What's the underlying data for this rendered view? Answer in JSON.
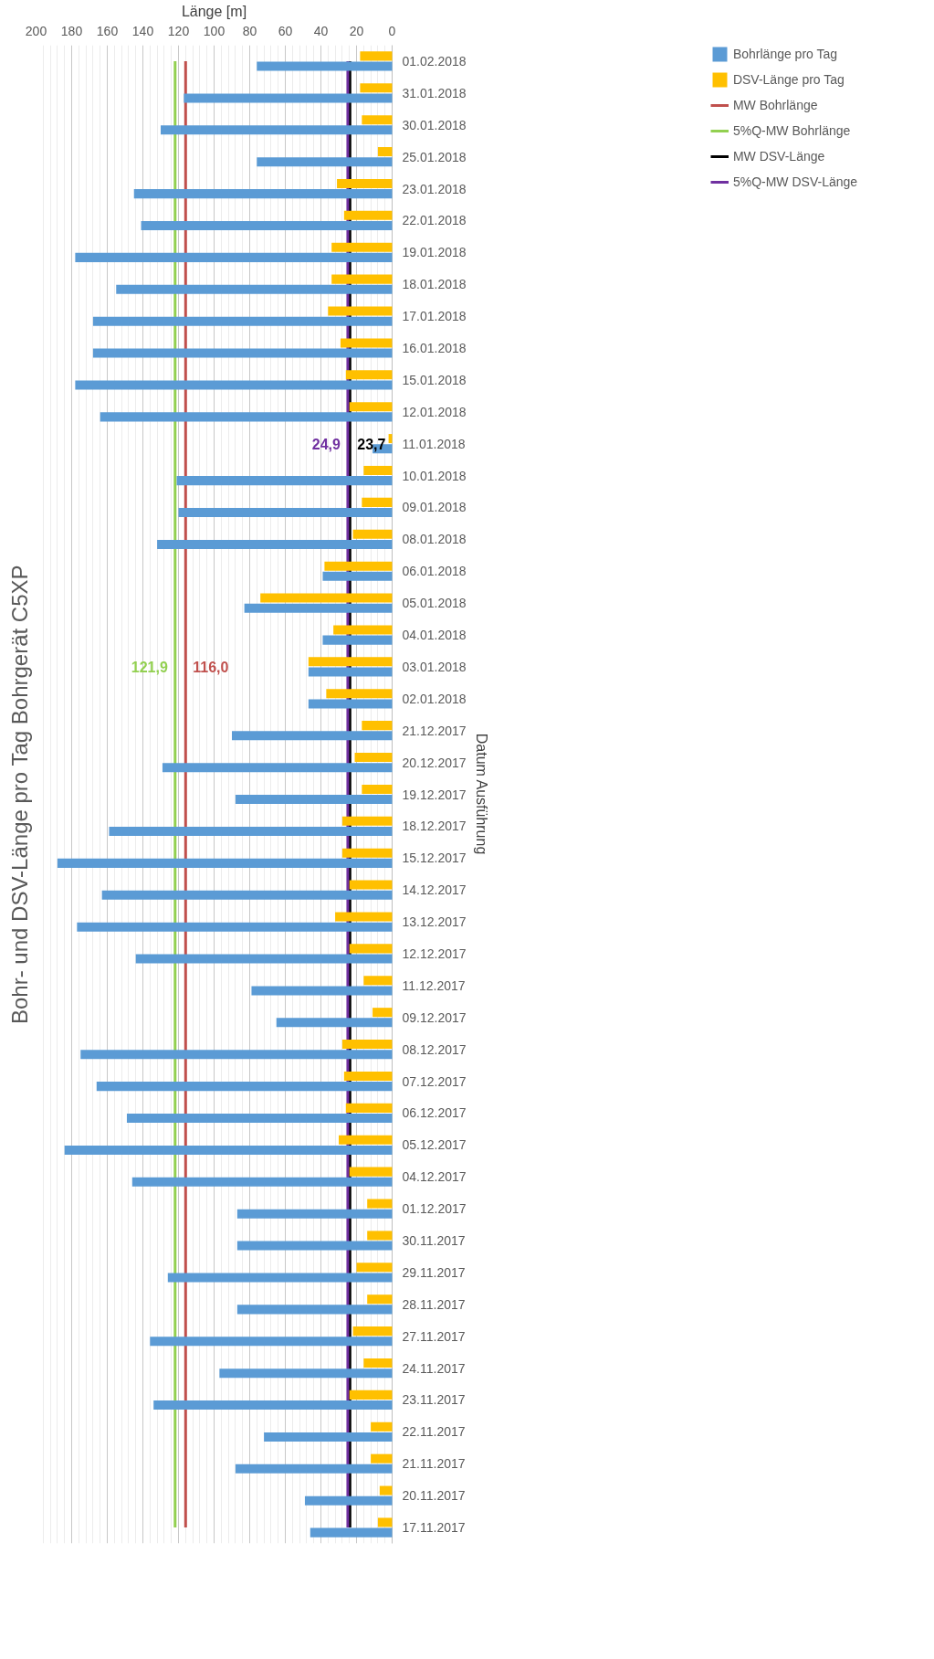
{
  "chart_data": {
    "type": "bar",
    "orientation": "horizontal",
    "title": "Bohr- und DSV-Länge pro Tag Bohrgerät C5XP",
    "xlabel": "Länge [m]",
    "ylabel": "Datum Ausführung",
    "categories": [
      "01.02.2018",
      "31.01.2018",
      "30.01.2018",
      "25.01.2018",
      "23.01.2018",
      "22.01.2018",
      "19.01.2018",
      "18.01.2018",
      "17.01.2018",
      "16.01.2018",
      "15.01.2018",
      "12.01.2018",
      "11.01.2018",
      "10.01.2018",
      "09.01.2018",
      "08.01.2018",
      "06.01.2018",
      "05.01.2018",
      "04.01.2018",
      "03.01.2018",
      "02.01.2018",
      "21.12.2017",
      "20.12.2017",
      "19.12.2017",
      "18.12.2017",
      "15.12.2017",
      "14.12.2017",
      "13.12.2017",
      "12.12.2017",
      "11.12.2017",
      "09.12.2017",
      "08.12.2017",
      "07.12.2017",
      "06.12.2017",
      "05.12.2017",
      "04.12.2017",
      "01.12.2017",
      "30.11.2017",
      "29.11.2017",
      "28.11.2017",
      "27.11.2017",
      "24.11.2017",
      "23.11.2017",
      "22.11.2017",
      "21.11.2017",
      "20.11.2017",
      "17.11.2017"
    ],
    "series": [
      {
        "name": "Bohrlänge pro Tag",
        "color": "#5b9bd5",
        "values": [
          76,
          117,
          130,
          76,
          145,
          141,
          178,
          155,
          168,
          168,
          178,
          164,
          11,
          121,
          120,
          132,
          39,
          83,
          39,
          47,
          47,
          90,
          129,
          88,
          159,
          188,
          163,
          177,
          144,
          79,
          65,
          175,
          166,
          149,
          184,
          146,
          87,
          87,
          126,
          87,
          136,
          97,
          134,
          72,
          88,
          49,
          46
        ]
      },
      {
        "name": "DSV-Länge pro Tag",
        "color": "#ffc000",
        "values": [
          18,
          18,
          17,
          8,
          31,
          27,
          34,
          34,
          36,
          29,
          26,
          24,
          2,
          16,
          17,
          22,
          38,
          74,
          33,
          47,
          37,
          17,
          21,
          17,
          28,
          28,
          24,
          32,
          24,
          16,
          11,
          28,
          27,
          26,
          30,
          24,
          14,
          14,
          20,
          14,
          22,
          16,
          24,
          12,
          12,
          7,
          8
        ]
      },
      {
        "name": "MW Bohrlänge",
        "type": "line",
        "color": "#c0504d",
        "values": [
          116.0,
          116.0,
          116.0,
          116.0,
          116.0,
          116.0,
          116.0,
          116.0,
          116.0,
          116.0,
          116.0,
          116.0,
          116.0,
          116.0,
          116.0,
          116.0,
          116.0,
          116.0,
          116.0,
          116.0,
          116.0,
          116.0,
          116.0,
          116.0,
          116.0,
          116.0,
          116.0,
          116.0,
          116.0,
          116.0,
          116.0,
          116.0,
          116.0,
          116.0,
          116.0,
          116.0,
          116.0,
          116.0,
          116.0,
          116.0,
          116.0,
          116.0,
          116.0,
          116.0,
          116.0,
          116.0,
          116.0
        ],
        "value_labels": [
          null,
          null,
          null,
          null,
          null,
          null,
          null,
          null,
          null,
          null,
          null,
          null,
          null,
          null,
          null,
          null,
          null,
          null,
          null,
          "116,0",
          null,
          null,
          null,
          null,
          null,
          null,
          null,
          null,
          null,
          null,
          null,
          null,
          null,
          null,
          null,
          null,
          null,
          null,
          null,
          null,
          null,
          null,
          null,
          null,
          null,
          null,
          null
        ]
      },
      {
        "name": "5%Q-MW Bohrlänge",
        "type": "line",
        "color": "#92d050",
        "values": [
          121.9,
          121.9,
          121.9,
          121.9,
          121.9,
          121.9,
          121.9,
          121.9,
          121.9,
          121.9,
          121.9,
          121.9,
          121.9,
          121.9,
          121.9,
          121.9,
          121.9,
          121.9,
          121.9,
          121.9,
          121.9,
          121.9,
          121.9,
          121.9,
          121.9,
          121.9,
          121.9,
          121.9,
          121.9,
          121.9,
          121.9,
          121.9,
          121.9,
          121.9,
          121.9,
          121.9,
          121.9,
          121.9,
          121.9,
          121.9,
          121.9,
          121.9,
          121.9,
          121.9,
          121.9,
          121.9,
          121.9
        ],
        "value_labels": [
          null,
          null,
          null,
          null,
          null,
          null,
          null,
          null,
          null,
          null,
          null,
          null,
          null,
          null,
          null,
          null,
          null,
          null,
          null,
          "121,9",
          null,
          null,
          null,
          null,
          null,
          null,
          null,
          null,
          null,
          null,
          null,
          null,
          null,
          null,
          null,
          null,
          null,
          null,
          null,
          null,
          null,
          null,
          null,
          null,
          null,
          null,
          null
        ]
      },
      {
        "name": "MW DSV-Länge",
        "type": "line",
        "color": "#000000",
        "values": [
          23.7,
          23.7,
          23.7,
          23.7,
          23.7,
          23.7,
          23.7,
          23.7,
          23.7,
          23.7,
          23.7,
          23.7,
          23.7,
          23.7,
          23.7,
          23.7,
          23.7,
          23.7,
          23.7,
          23.7,
          23.7,
          23.7,
          23.7,
          23.7,
          23.7,
          23.7,
          23.7,
          23.7,
          23.7,
          23.7,
          23.7,
          23.7,
          23.7,
          23.7,
          23.7,
          23.7,
          23.7,
          23.7,
          23.7,
          23.7,
          23.7,
          23.7,
          23.7,
          23.7,
          23.7,
          23.7,
          23.7
        ],
        "value_labels": [
          null,
          null,
          null,
          null,
          null,
          null,
          null,
          null,
          null,
          null,
          null,
          null,
          "23,7",
          null,
          null,
          null,
          null,
          null,
          null,
          null,
          null,
          null,
          null,
          null,
          null,
          null,
          null,
          null,
          null,
          null,
          null,
          null,
          null,
          null,
          null,
          null,
          null,
          null,
          null,
          null,
          null,
          null,
          null,
          null,
          null,
          null,
          null
        ]
      },
      {
        "name": "5%Q-MW DSV-Länge",
        "type": "line",
        "color": "#7030a0",
        "values": [
          24.9,
          24.9,
          24.9,
          24.9,
          24.9,
          24.9,
          24.9,
          24.9,
          24.9,
          24.9,
          24.9,
          24.9,
          24.9,
          24.9,
          24.9,
          24.9,
          24.9,
          24.9,
          24.9,
          24.9,
          24.9,
          24.9,
          24.9,
          24.9,
          24.9,
          24.9,
          24.9,
          24.9,
          24.9,
          24.9,
          24.9,
          24.9,
          24.9,
          24.9,
          24.9,
          24.9,
          24.9,
          24.9,
          24.9,
          24.9,
          24.9,
          24.9,
          24.9,
          24.9,
          24.9,
          24.9,
          24.9
        ],
        "value_labels": [
          null,
          null,
          null,
          null,
          null,
          null,
          null,
          null,
          null,
          null,
          null,
          null,
          "24,9",
          null,
          null,
          null,
          null,
          null,
          null,
          null,
          null,
          null,
          null,
          null,
          null,
          null,
          null,
          null,
          null,
          null,
          null,
          null,
          null,
          null,
          null,
          null,
          null,
          null,
          null,
          null,
          null,
          null,
          null,
          null,
          null,
          null,
          null
        ]
      }
    ],
    "xlim": [
      200,
      0
    ],
    "xticks": [
      0,
      20,
      40,
      60,
      80,
      100,
      120,
      140,
      160,
      180,
      200
    ],
    "grid": "x",
    "legend": "right"
  }
}
